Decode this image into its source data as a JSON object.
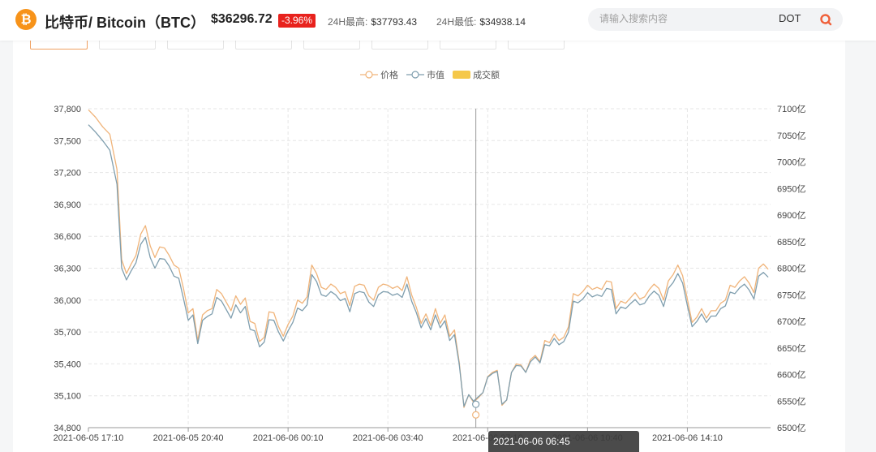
{
  "header": {
    "coin_logo_glyph": "₿",
    "coin_name": "比特币/ Bitcoin（BTC）",
    "price": "$36296.72",
    "change": "-3.96%",
    "high_label": "24H最高:",
    "high_value": "$37793.43",
    "low_label": "24H最低:",
    "low_value": "$34938.14",
    "search_placeholder": "请输入搜索内容",
    "search_tag": "DOT",
    "accent": "#f7931a",
    "down_color": "#e8221d"
  },
  "tooltip": {
    "text": "2021-06-06 06:45"
  },
  "chart_data": {
    "type": "line",
    "legend": [
      {
        "name": "价格",
        "color": "#f0b47a",
        "marker": "line-circle"
      },
      {
        "name": "市值",
        "color": "#7f9eae",
        "marker": "line-circle"
      },
      {
        "name": "成交额",
        "color": "#f5c84a",
        "marker": "rect"
      }
    ],
    "legend_position": "top-center",
    "x_ticks": [
      "2021-06-05 17:10",
      "2021-06-05 20:40",
      "2021-06-06 00:10",
      "2021-06-06 03:40",
      "2021-06-06 07:10",
      "2021-06-06 10:40",
      "2021-06-06 14:10"
    ],
    "x_tick_positions": [
      0,
      42,
      84,
      126,
      168,
      210,
      252
    ],
    "x_range": [
      0,
      287
    ],
    "y_left": {
      "min": 34800,
      "max": 37800,
      "ticks": [
        "34,800",
        "35,100",
        "35,400",
        "35,700",
        "36,000",
        "36,300",
        "36,600",
        "36,900",
        "37,200",
        "37,500",
        "37,800"
      ]
    },
    "y_right": {
      "min": 6500,
      "max": 7100,
      "ticks": [
        "6500亿",
        "6550亿",
        "6600亿",
        "6650亿",
        "6700亿",
        "6750亿",
        "6800亿",
        "6850亿",
        "6900亿",
        "6950亿",
        "7000亿",
        "7050亿",
        "7100亿"
      ]
    },
    "grid": true,
    "crosshair_x": 163,
    "highlight_point": {
      "x": 163,
      "price": 34920,
      "market_cap": 6544
    },
    "series": [
      {
        "name": "价格",
        "color": "#f0b47a",
        "points": [
          [
            0,
            37790
          ],
          [
            3,
            37720
          ],
          [
            6,
            37630
          ],
          [
            9,
            37560
          ],
          [
            12,
            37230
          ],
          [
            14,
            36380
          ],
          [
            16,
            36250
          ],
          [
            18,
            36340
          ],
          [
            20,
            36420
          ],
          [
            22,
            36620
          ],
          [
            24,
            36700
          ],
          [
            26,
            36510
          ],
          [
            28,
            36400
          ],
          [
            30,
            36500
          ],
          [
            32,
            36490
          ],
          [
            34,
            36420
          ],
          [
            36,
            36330
          ],
          [
            38,
            36300
          ],
          [
            40,
            36110
          ],
          [
            42,
            35880
          ],
          [
            44,
            35920
          ],
          [
            46,
            35620
          ],
          [
            48,
            35860
          ],
          [
            50,
            35900
          ],
          [
            52,
            35920
          ],
          [
            54,
            36100
          ],
          [
            56,
            36060
          ],
          [
            58,
            35980
          ],
          [
            60,
            35900
          ],
          [
            62,
            36040
          ],
          [
            64,
            35960
          ],
          [
            66,
            36020
          ],
          [
            68,
            35800
          ],
          [
            70,
            35780
          ],
          [
            72,
            35610
          ],
          [
            74,
            35650
          ],
          [
            76,
            35890
          ],
          [
            78,
            35880
          ],
          [
            80,
            35750
          ],
          [
            82,
            35660
          ],
          [
            84,
            35770
          ],
          [
            86,
            35850
          ],
          [
            88,
            36000
          ],
          [
            90,
            35970
          ],
          [
            92,
            36030
          ],
          [
            94,
            36330
          ],
          [
            96,
            36250
          ],
          [
            98,
            36120
          ],
          [
            100,
            36100
          ],
          [
            102,
            36150
          ],
          [
            104,
            36120
          ],
          [
            106,
            36060
          ],
          [
            108,
            36080
          ],
          [
            110,
            35950
          ],
          [
            112,
            36130
          ],
          [
            114,
            36150
          ],
          [
            116,
            36140
          ],
          [
            118,
            36040
          ],
          [
            120,
            36000
          ],
          [
            122,
            36120
          ],
          [
            124,
            36150
          ],
          [
            126,
            36140
          ],
          [
            128,
            36110
          ],
          [
            130,
            36130
          ],
          [
            132,
            36090
          ],
          [
            134,
            36220
          ],
          [
            136,
            36050
          ],
          [
            138,
            35930
          ],
          [
            140,
            35780
          ],
          [
            142,
            35870
          ],
          [
            144,
            35760
          ],
          [
            146,
            35920
          ],
          [
            148,
            35780
          ],
          [
            150,
            35860
          ],
          [
            152,
            35660
          ],
          [
            154,
            35720
          ],
          [
            156,
            35420
          ],
          [
            158,
            34990
          ],
          [
            160,
            35110
          ],
          [
            162,
            35040
          ],
          [
            164,
            35080
          ],
          [
            166,
            35130
          ],
          [
            168,
            35280
          ],
          [
            170,
            35320
          ],
          [
            172,
            35340
          ],
          [
            174,
            35010
          ],
          [
            176,
            35060
          ],
          [
            178,
            35320
          ],
          [
            180,
            35400
          ],
          [
            182,
            35390
          ],
          [
            184,
            35320
          ],
          [
            186,
            35440
          ],
          [
            188,
            35480
          ],
          [
            190,
            35420
          ],
          [
            192,
            35620
          ],
          [
            194,
            35600
          ],
          [
            196,
            35680
          ],
          [
            198,
            35620
          ],
          [
            200,
            35650
          ],
          [
            202,
            35750
          ],
          [
            204,
            36060
          ],
          [
            206,
            36040
          ],
          [
            208,
            36080
          ],
          [
            210,
            36140
          ],
          [
            212,
            36100
          ],
          [
            214,
            36120
          ],
          [
            216,
            36100
          ],
          [
            218,
            36180
          ],
          [
            220,
            36170
          ],
          [
            222,
            35920
          ],
          [
            224,
            35990
          ],
          [
            226,
            35970
          ],
          [
            228,
            36020
          ],
          [
            230,
            36070
          ],
          [
            232,
            36010
          ],
          [
            234,
            36030
          ],
          [
            236,
            36100
          ],
          [
            238,
            36150
          ],
          [
            240,
            36110
          ],
          [
            242,
            36000
          ],
          [
            244,
            36180
          ],
          [
            246,
            36240
          ],
          [
            248,
            36330
          ],
          [
            250,
            36230
          ],
          [
            252,
            36010
          ],
          [
            254,
            35790
          ],
          [
            256,
            35840
          ],
          [
            258,
            35920
          ],
          [
            260,
            35830
          ],
          [
            262,
            35900
          ],
          [
            264,
            35900
          ],
          [
            266,
            35970
          ],
          [
            268,
            36000
          ],
          [
            270,
            36140
          ],
          [
            272,
            36120
          ],
          [
            274,
            36180
          ],
          [
            276,
            36220
          ],
          [
            278,
            36160
          ],
          [
            280,
            36070
          ],
          [
            282,
            36300
          ],
          [
            284,
            36340
          ],
          [
            286,
            36290
          ]
        ]
      },
      {
        "name": "市值",
        "color": "#7f9eae",
        "points": [
          [
            0,
            7070
          ],
          [
            3,
            7056
          ],
          [
            6,
            7040
          ],
          [
            9,
            7022
          ],
          [
            12,
            6958
          ],
          [
            14,
            6800
          ],
          [
            16,
            6778
          ],
          [
            18,
            6795
          ],
          [
            20,
            6810
          ],
          [
            22,
            6845
          ],
          [
            24,
            6858
          ],
          [
            26,
            6820
          ],
          [
            28,
            6800
          ],
          [
            30,
            6818
          ],
          [
            32,
            6817
          ],
          [
            34,
            6804
          ],
          [
            36,
            6785
          ],
          [
            38,
            6781
          ],
          [
            40,
            6743
          ],
          [
            42,
            6702
          ],
          [
            44,
            6712
          ],
          [
            46,
            6658
          ],
          [
            48,
            6702
          ],
          [
            50,
            6709
          ],
          [
            52,
            6714
          ],
          [
            54,
            6745
          ],
          [
            56,
            6738
          ],
          [
            58,
            6722
          ],
          [
            60,
            6706
          ],
          [
            62,
            6731
          ],
          [
            64,
            6716
          ],
          [
            66,
            6728
          ],
          [
            68,
            6685
          ],
          [
            70,
            6682
          ],
          [
            72,
            6652
          ],
          [
            74,
            6661
          ],
          [
            76,
            6703
          ],
          [
            78,
            6702
          ],
          [
            80,
            6680
          ],
          [
            82,
            6663
          ],
          [
            84,
            6682
          ],
          [
            86,
            6698
          ],
          [
            88,
            6725
          ],
          [
            90,
            6720
          ],
          [
            92,
            6731
          ],
          [
            94,
            6788
          ],
          [
            96,
            6775
          ],
          [
            98,
            6750
          ],
          [
            100,
            6747
          ],
          [
            102,
            6756
          ],
          [
            104,
            6750
          ],
          [
            106,
            6739
          ],
          [
            108,
            6743
          ],
          [
            110,
            6718
          ],
          [
            112,
            6752
          ],
          [
            114,
            6756
          ],
          [
            116,
            6754
          ],
          [
            118,
            6736
          ],
          [
            120,
            6728
          ],
          [
            122,
            6750
          ],
          [
            124,
            6756
          ],
          [
            126,
            6755
          ],
          [
            128,
            6749
          ],
          [
            130,
            6752
          ],
          [
            132,
            6745
          ],
          [
            134,
            6770
          ],
          [
            136,
            6738
          ],
          [
            138,
            6716
          ],
          [
            140,
            6688
          ],
          [
            142,
            6705
          ],
          [
            144,
            6684
          ],
          [
            146,
            6712
          ],
          [
            148,
            6688
          ],
          [
            150,
            6701
          ],
          [
            152,
            6664
          ],
          [
            154,
            6675
          ],
          [
            156,
            6620
          ],
          [
            158,
            6540
          ],
          [
            160,
            6562
          ],
          [
            162,
            6550
          ],
          [
            164,
            6558
          ],
          [
            166,
            6566
          ],
          [
            168,
            6595
          ],
          [
            170,
            6602
          ],
          [
            172,
            6606
          ],
          [
            174,
            6544
          ],
          [
            176,
            6552
          ],
          [
            178,
            6604
          ],
          [
            180,
            6617
          ],
          [
            182,
            6616
          ],
          [
            184,
            6604
          ],
          [
            186,
            6624
          ],
          [
            188,
            6633
          ],
          [
            190,
            6622
          ],
          [
            192,
            6656
          ],
          [
            194,
            6654
          ],
          [
            196,
            6668
          ],
          [
            198,
            6656
          ],
          [
            200,
            6662
          ],
          [
            202,
            6680
          ],
          [
            204,
            6738
          ],
          [
            206,
            6735
          ],
          [
            208,
            6742
          ],
          [
            210,
            6754
          ],
          [
            212,
            6746
          ],
          [
            214,
            6750
          ],
          [
            216,
            6747
          ],
          [
            218,
            6762
          ],
          [
            220,
            6760
          ],
          [
            222,
            6714
          ],
          [
            224,
            6727
          ],
          [
            226,
            6724
          ],
          [
            228,
            6733
          ],
          [
            230,
            6741
          ],
          [
            232,
            6731
          ],
          [
            234,
            6734
          ],
          [
            236,
            6748
          ],
          [
            238,
            6757
          ],
          [
            240,
            6749
          ],
          [
            242,
            6728
          ],
          [
            244,
            6762
          ],
          [
            246,
            6773
          ],
          [
            248,
            6790
          ],
          [
            250,
            6772
          ],
          [
            252,
            6730
          ],
          [
            254,
            6690
          ],
          [
            256,
            6700
          ],
          [
            258,
            6714
          ],
          [
            260,
            6698
          ],
          [
            262,
            6710
          ],
          [
            264,
            6710
          ],
          [
            266,
            6724
          ],
          [
            268,
            6729
          ],
          [
            270,
            6755
          ],
          [
            272,
            6752
          ],
          [
            274,
            6763
          ],
          [
            276,
            6770
          ],
          [
            278,
            6759
          ],
          [
            280,
            6742
          ],
          [
            282,
            6785
          ],
          [
            284,
            6792
          ],
          [
            286,
            6783
          ]
        ]
      }
    ]
  }
}
